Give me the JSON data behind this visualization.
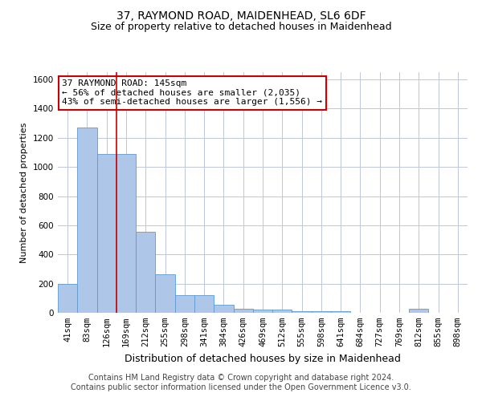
{
  "title": "37, RAYMOND ROAD, MAIDENHEAD, SL6 6DF",
  "subtitle": "Size of property relative to detached houses in Maidenhead",
  "xlabel": "Distribution of detached houses by size in Maidenhead",
  "ylabel": "Number of detached properties",
  "footer_line1": "Contains HM Land Registry data © Crown copyright and database right 2024.",
  "footer_line2": "Contains public sector information licensed under the Open Government Licence v3.0.",
  "categories": [
    "41sqm",
    "83sqm",
    "126sqm",
    "169sqm",
    "212sqm",
    "255sqm",
    "298sqm",
    "341sqm",
    "384sqm",
    "426sqm",
    "469sqm",
    "512sqm",
    "555sqm",
    "598sqm",
    "641sqm",
    "684sqm",
    "727sqm",
    "769sqm",
    "812sqm",
    "855sqm",
    "898sqm"
  ],
  "values": [
    197,
    1270,
    1090,
    1090,
    555,
    265,
    120,
    120,
    55,
    30,
    20,
    20,
    13,
    13,
    13,
    0,
    0,
    0,
    30,
    0,
    0
  ],
  "bar_color": "#aec6e8",
  "bar_edge_color": "#5b9bd5",
  "grid_color": "#c0c8d8",
  "annotation_text": "37 RAYMOND ROAD: 145sqm\n← 56% of detached houses are smaller (2,035)\n43% of semi-detached houses are larger (1,556) →",
  "annotation_box_color": "#ffffff",
  "annotation_box_edge": "#cc0000",
  "vline_x": 2.5,
  "vline_color": "#cc0000",
  "ylim": [
    0,
    1650
  ],
  "yticks": [
    0,
    200,
    400,
    600,
    800,
    1000,
    1200,
    1400,
    1600
  ],
  "background_color": "#ffffff",
  "title_fontsize": 10,
  "subtitle_fontsize": 9,
  "xlabel_fontsize": 9,
  "ylabel_fontsize": 8,
  "tick_fontsize": 7.5,
  "annotation_fontsize": 8,
  "footer_fontsize": 7
}
